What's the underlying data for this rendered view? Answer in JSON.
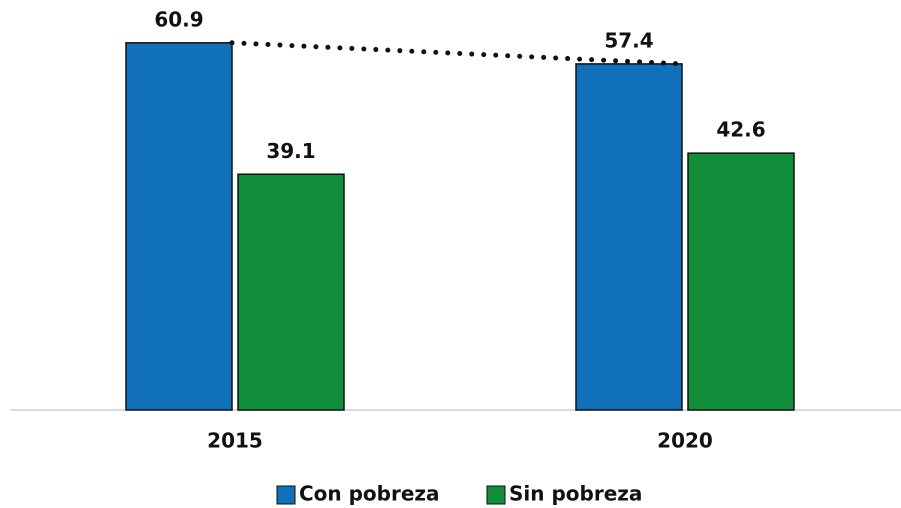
{
  "chart_data": {
    "type": "bar",
    "categories": [
      "2015",
      "2020"
    ],
    "series": [
      {
        "name": "Con pobreza",
        "color": "#1170ba",
        "values": [
          60.9,
          57.4
        ]
      },
      {
        "name": "Sin pobreza",
        "color": "#118e3a",
        "values": [
          39.1,
          42.6
        ]
      }
    ],
    "ylim": [
      0,
      68
    ]
  }
}
